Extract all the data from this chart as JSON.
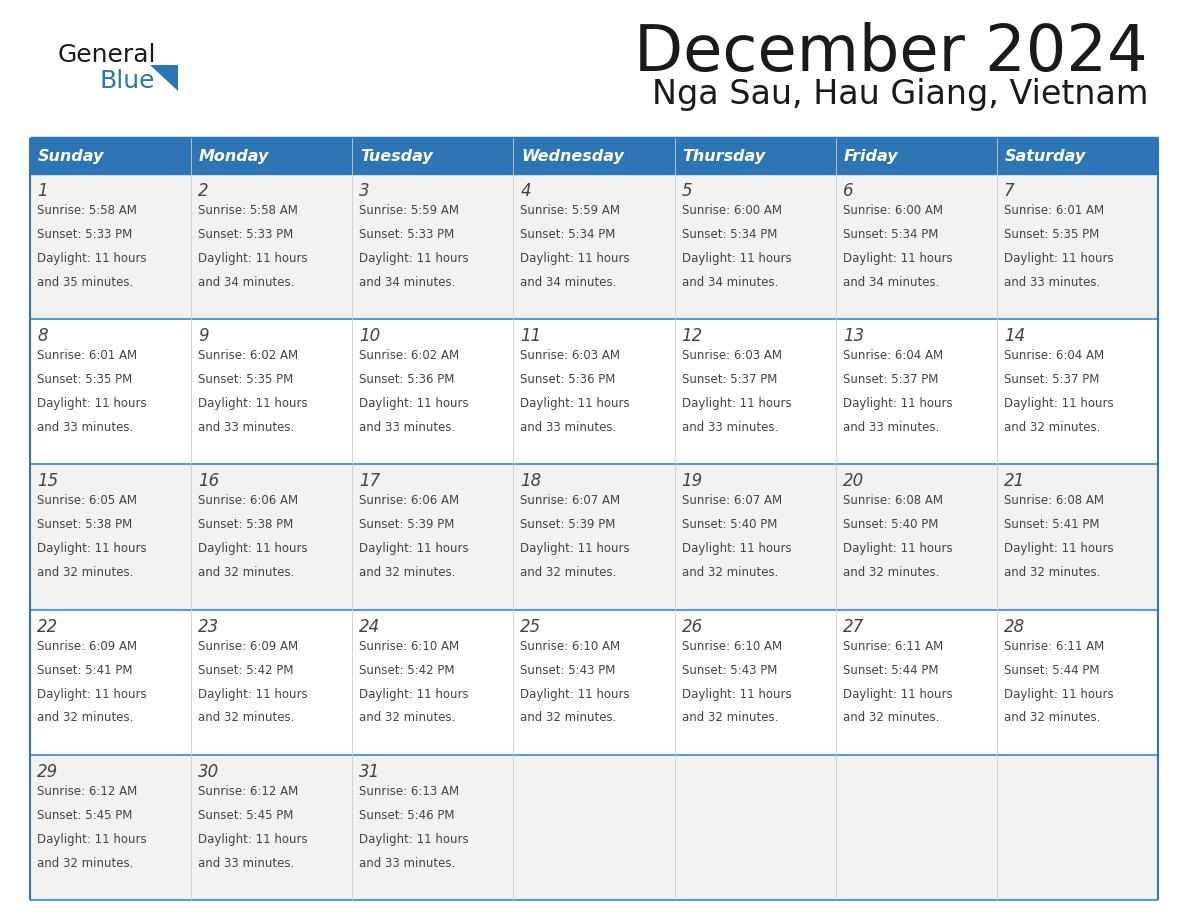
{
  "title": "December 2024",
  "subtitle": "Nga Sau, Hau Giang, Vietnam",
  "days_of_week": [
    "Sunday",
    "Monday",
    "Tuesday",
    "Wednesday",
    "Thursday",
    "Friday",
    "Saturday"
  ],
  "header_bg": "#2E75B6",
  "header_text_color": "#FFFFFF",
  "cell_bg_odd": "#F2F2F2",
  "cell_bg_even": "#FFFFFF",
  "border_color": "#2E75B6",
  "row_line_color": "#5B9BD5",
  "col_line_color": "#CCCCCC",
  "day_number_color": "#444444",
  "cell_text_color": "#444444",
  "title_color": "#1a1a1a",
  "subtitle_color": "#1a1a1a",
  "logo_general_color": "#1a1a1a",
  "logo_blue_color": "#2E75B6",
  "logo_triangle_color": "#2E75B6",
  "calendar_data": [
    [
      {
        "day": 1,
        "sunrise": "5:58 AM",
        "sunset": "5:33 PM",
        "daylight_min": "35"
      },
      {
        "day": 2,
        "sunrise": "5:58 AM",
        "sunset": "5:33 PM",
        "daylight_min": "34"
      },
      {
        "day": 3,
        "sunrise": "5:59 AM",
        "sunset": "5:33 PM",
        "daylight_min": "34"
      },
      {
        "day": 4,
        "sunrise": "5:59 AM",
        "sunset": "5:34 PM",
        "daylight_min": "34"
      },
      {
        "day": 5,
        "sunrise": "6:00 AM",
        "sunset": "5:34 PM",
        "daylight_min": "34"
      },
      {
        "day": 6,
        "sunrise": "6:00 AM",
        "sunset": "5:34 PM",
        "daylight_min": "34"
      },
      {
        "day": 7,
        "sunrise": "6:01 AM",
        "sunset": "5:35 PM",
        "daylight_min": "33"
      }
    ],
    [
      {
        "day": 8,
        "sunrise": "6:01 AM",
        "sunset": "5:35 PM",
        "daylight_min": "33"
      },
      {
        "day": 9,
        "sunrise": "6:02 AM",
        "sunset": "5:35 PM",
        "daylight_min": "33"
      },
      {
        "day": 10,
        "sunrise": "6:02 AM",
        "sunset": "5:36 PM",
        "daylight_min": "33"
      },
      {
        "day": 11,
        "sunrise": "6:03 AM",
        "sunset": "5:36 PM",
        "daylight_min": "33"
      },
      {
        "day": 12,
        "sunrise": "6:03 AM",
        "sunset": "5:37 PM",
        "daylight_min": "33"
      },
      {
        "day": 13,
        "sunrise": "6:04 AM",
        "sunset": "5:37 PM",
        "daylight_min": "33"
      },
      {
        "day": 14,
        "sunrise": "6:04 AM",
        "sunset": "5:37 PM",
        "daylight_min": "32"
      }
    ],
    [
      {
        "day": 15,
        "sunrise": "6:05 AM",
        "sunset": "5:38 PM",
        "daylight_min": "32"
      },
      {
        "day": 16,
        "sunrise": "6:06 AM",
        "sunset": "5:38 PM",
        "daylight_min": "32"
      },
      {
        "day": 17,
        "sunrise": "6:06 AM",
        "sunset": "5:39 PM",
        "daylight_min": "32"
      },
      {
        "day": 18,
        "sunrise": "6:07 AM",
        "sunset": "5:39 PM",
        "daylight_min": "32"
      },
      {
        "day": 19,
        "sunrise": "6:07 AM",
        "sunset": "5:40 PM",
        "daylight_min": "32"
      },
      {
        "day": 20,
        "sunrise": "6:08 AM",
        "sunset": "5:40 PM",
        "daylight_min": "32"
      },
      {
        "day": 21,
        "sunrise": "6:08 AM",
        "sunset": "5:41 PM",
        "daylight_min": "32"
      }
    ],
    [
      {
        "day": 22,
        "sunrise": "6:09 AM",
        "sunset": "5:41 PM",
        "daylight_min": "32"
      },
      {
        "day": 23,
        "sunrise": "6:09 AM",
        "sunset": "5:42 PM",
        "daylight_min": "32"
      },
      {
        "day": 24,
        "sunrise": "6:10 AM",
        "sunset": "5:42 PM",
        "daylight_min": "32"
      },
      {
        "day": 25,
        "sunrise": "6:10 AM",
        "sunset": "5:43 PM",
        "daylight_min": "32"
      },
      {
        "day": 26,
        "sunrise": "6:10 AM",
        "sunset": "5:43 PM",
        "daylight_min": "32"
      },
      {
        "day": 27,
        "sunrise": "6:11 AM",
        "sunset": "5:44 PM",
        "daylight_min": "32"
      },
      {
        "day": 28,
        "sunrise": "6:11 AM",
        "sunset": "5:44 PM",
        "daylight_min": "32"
      }
    ],
    [
      {
        "day": 29,
        "sunrise": "6:12 AM",
        "sunset": "5:45 PM",
        "daylight_min": "32"
      },
      {
        "day": 30,
        "sunrise": "6:12 AM",
        "sunset": "5:45 PM",
        "daylight_min": "33"
      },
      {
        "day": 31,
        "sunrise": "6:13 AM",
        "sunset": "5:46 PM",
        "daylight_min": "33"
      },
      null,
      null,
      null,
      null
    ]
  ]
}
